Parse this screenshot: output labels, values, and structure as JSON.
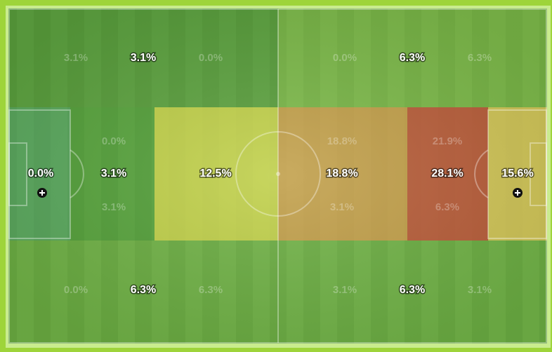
{
  "top": {
    "left": {
      "main": "3.1%",
      "side": [
        "3.1%",
        "0.0%"
      ]
    },
    "right": {
      "main": "6.3%",
      "side": [
        "0.0%",
        "6.3%"
      ]
    }
  },
  "middle": [
    {
      "main": "0.0%"
    },
    {
      "main": "3.1%",
      "above": "0.0%",
      "below": "3.1%"
    },
    {
      "main": "12.5%"
    },
    {
      "main": "18.8%",
      "above": "18.8%",
      "below": "3.1%"
    },
    {
      "main": "28.1%",
      "above": "21.9%",
      "below": "6.3%"
    },
    {
      "main": "15.6%"
    }
  ],
  "bottom": {
    "left": {
      "main": "6.3%",
      "side": [
        "0.0%",
        "6.3%"
      ]
    },
    "right": {
      "main": "6.3%",
      "side": [
        "3.1%",
        "3.1%"
      ]
    }
  }
}
